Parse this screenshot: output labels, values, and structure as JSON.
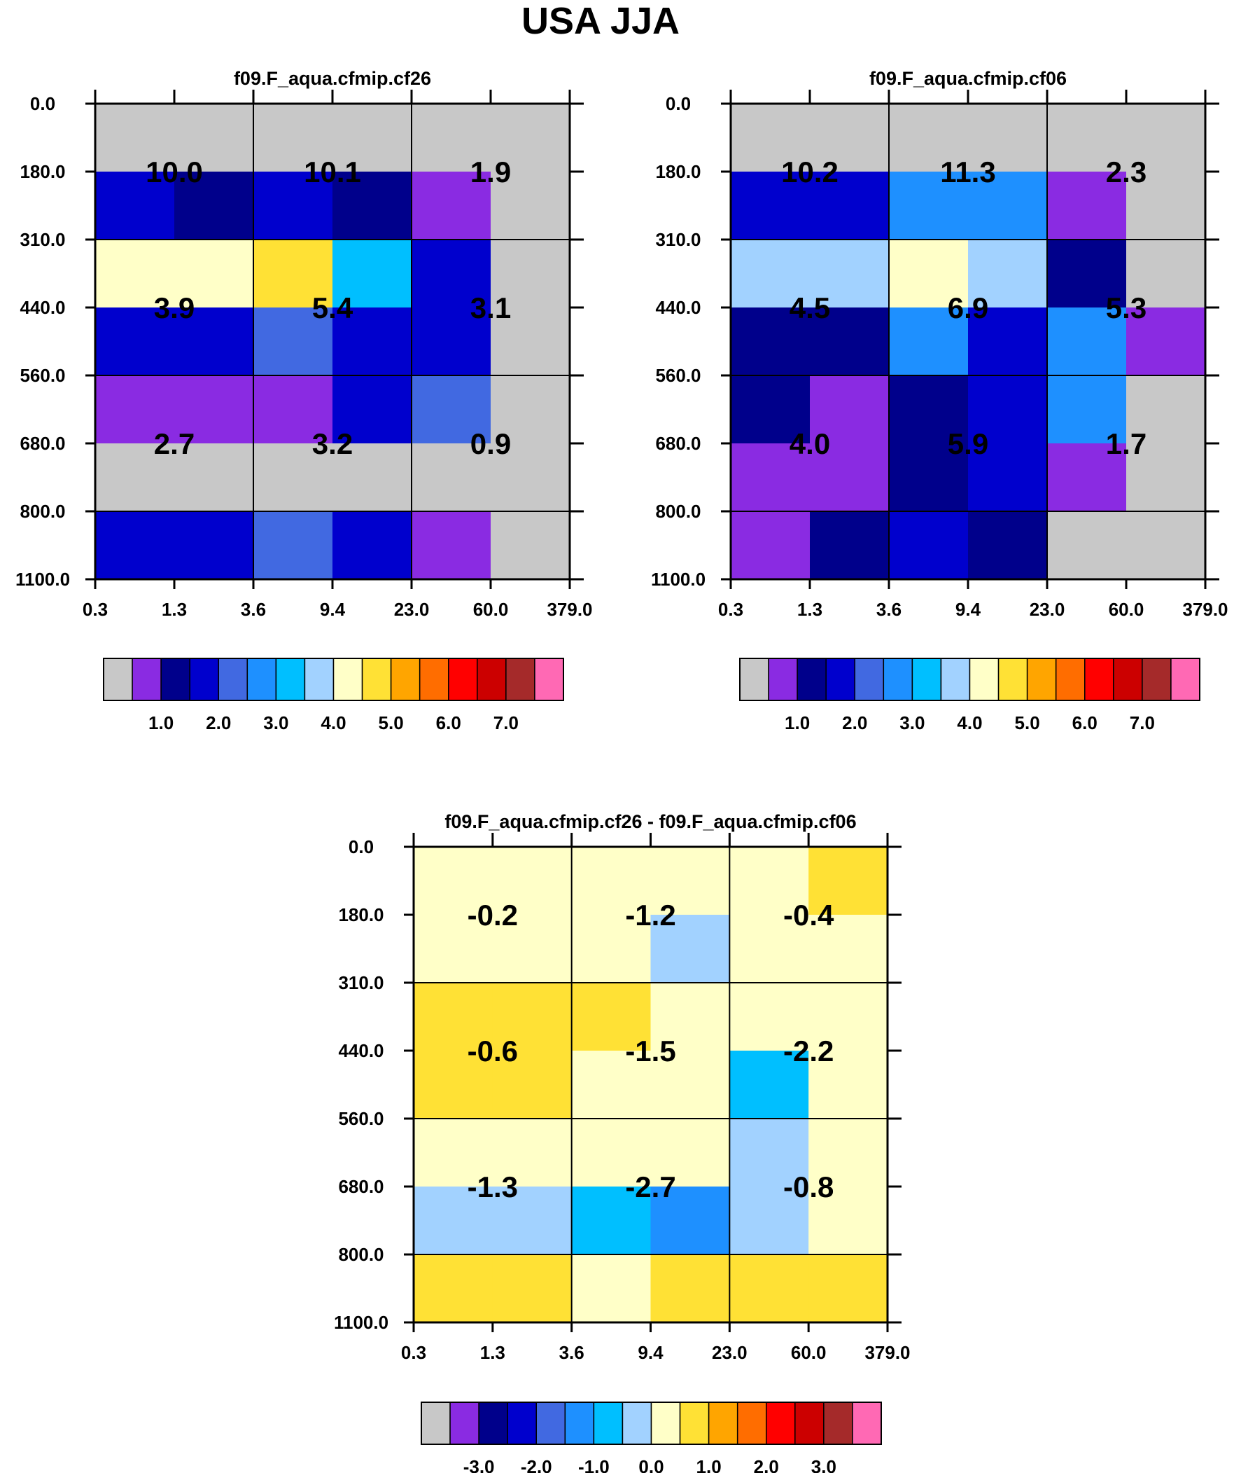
{
  "figure_title": "USA JJA",
  "chart_data": [
    {
      "type": "heatmap",
      "title": "f09.F_aqua.cfmip.cf26",
      "x_tick_labels": [
        "0.3",
        "1.3",
        "3.6",
        "9.4",
        "23.0",
        "60.0",
        "379.0"
      ],
      "y_tick_labels": [
        "0.0",
        "180.0",
        "310.0",
        "440.0",
        "560.0",
        "680.0",
        "800.0",
        "1100.0"
      ],
      "cells": [
        [
          0,
          0,
          0,
          0,
          0,
          0
        ],
        [
          3,
          2,
          3,
          2,
          1,
          0
        ],
        [
          8,
          8,
          9,
          6,
          3,
          0
        ],
        [
          3,
          3,
          4,
          3,
          3,
          0
        ],
        [
          1,
          1,
          1,
          3,
          4,
          0
        ],
        [
          0,
          0,
          0,
          0,
          0,
          0
        ],
        [
          3,
          3,
          4,
          3,
          1,
          0
        ]
      ],
      "block_values": [
        [
          "10.0",
          "10.1",
          "1.9"
        ],
        [
          "3.9",
          "5.4",
          "3.1"
        ],
        [
          "2.7",
          "3.2",
          "0.9"
        ]
      ],
      "colorbar_labels": [
        "1.0",
        "2.0",
        "3.0",
        "4.0",
        "5.0",
        "6.0",
        "7.0"
      ]
    },
    {
      "type": "heatmap",
      "title": "f09.F_aqua.cfmip.cf06",
      "x_tick_labels": [
        "0.3",
        "1.3",
        "3.6",
        "9.4",
        "23.0",
        "60.0",
        "379.0"
      ],
      "y_tick_labels": [
        "0.0",
        "180.0",
        "310.0",
        "440.0",
        "560.0",
        "680.0",
        "800.0",
        "1100.0"
      ],
      "cells": [
        [
          0,
          0,
          0,
          0,
          0,
          0
        ],
        [
          3,
          3,
          5,
          5,
          1,
          0
        ],
        [
          7,
          7,
          8,
          7,
          2,
          0
        ],
        [
          2,
          2,
          5,
          3,
          5,
          1
        ],
        [
          2,
          1,
          2,
          3,
          5,
          0
        ],
        [
          1,
          1,
          2,
          3,
          1,
          0
        ],
        [
          1,
          2,
          3,
          2,
          0,
          0
        ]
      ],
      "block_values": [
        [
          "10.2",
          "11.3",
          "2.3"
        ],
        [
          "4.5",
          "6.9",
          "5.3"
        ],
        [
          "4.0",
          "5.9",
          "1.7"
        ]
      ],
      "colorbar_labels": [
        "1.0",
        "2.0",
        "3.0",
        "4.0",
        "5.0",
        "6.0",
        "7.0"
      ]
    },
    {
      "type": "heatmap",
      "title": "f09.F_aqua.cfmip.cf26 - f09.F_aqua.cfmip.cf06",
      "x_tick_labels": [
        "0.3",
        "1.3",
        "3.6",
        "9.4",
        "23.0",
        "60.0",
        "379.0"
      ],
      "y_tick_labels": [
        "0.0",
        "180.0",
        "310.0",
        "440.0",
        "560.0",
        "680.0",
        "800.0",
        "1100.0"
      ],
      "cells": [
        [
          8,
          8,
          8,
          8,
          8,
          9
        ],
        [
          8,
          8,
          8,
          7,
          8,
          8
        ],
        [
          9,
          9,
          9,
          8,
          8,
          8
        ],
        [
          9,
          9,
          8,
          8,
          6,
          8
        ],
        [
          8,
          8,
          8,
          8,
          7,
          8
        ],
        [
          7,
          7,
          6,
          5,
          7,
          8
        ],
        [
          9,
          9,
          8,
          9,
          9,
          9
        ]
      ],
      "block_values": [
        [
          "-0.2",
          "-1.2",
          "-0.4"
        ],
        [
          "-0.6",
          "-1.5",
          "-2.2"
        ],
        [
          "-1.3",
          "-2.7",
          "-0.8"
        ]
      ],
      "colorbar_labels": [
        "-3.0",
        "-2.0",
        "-1.0",
        "0.0",
        "1.0",
        "2.0",
        "3.0"
      ]
    }
  ],
  "colorbar_colors": [
    "#c8c8c8",
    "#8a2be2",
    "#00008b",
    "#0000cd",
    "#4169e1",
    "#1e90ff",
    "#00bfff",
    "#a2d2ff",
    "#ffffc8",
    "#ffe135",
    "#ffa500",
    "#ff6d00",
    "#ff0000",
    "#cc0000",
    "#a52a2a",
    "#ff69b4"
  ]
}
